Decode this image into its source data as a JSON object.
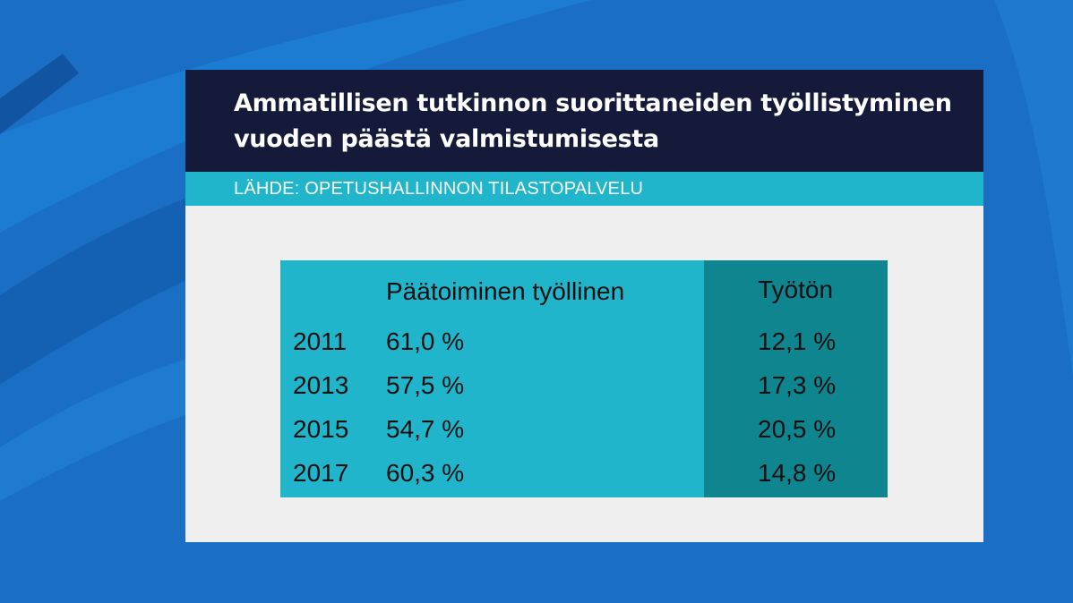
{
  "header": {
    "title": "Ammatillisen tutkinnon suorittaneiden työllistyminen vuoden päästä valmistumisesta",
    "source": "LÄHDE: OPETUSHALLINNON TILASTOPALVELU"
  },
  "colors": {
    "background": "#1a6fc4",
    "title_bar": "#151a3a",
    "source_bar": "#21b5cb",
    "employed_column": "#21b5cb",
    "unemployed_column": "#0f8590",
    "card": "#efefef"
  },
  "chart_data": {
    "type": "table",
    "title": "Ammatillisen tutkinnon suorittaneiden työllistyminen vuoden päästä valmistumisesta",
    "source": "LÄHDE: OPETUSHALLINNON TILASTOPALVELU",
    "columns": [
      "Päätoiminen työllinen",
      "Työtön"
    ],
    "rows": [
      {
        "year": "2011",
        "values": [
          "61,0 %",
          "12,1 %"
        ]
      },
      {
        "year": "2013",
        "values": [
          "57,5 %",
          "17,3 %"
        ]
      },
      {
        "year": "2015",
        "values": [
          "54,7 %",
          "20,5 %"
        ]
      },
      {
        "year": "2017",
        "values": [
          "60,3 %",
          "14,8 %"
        ]
      }
    ]
  }
}
